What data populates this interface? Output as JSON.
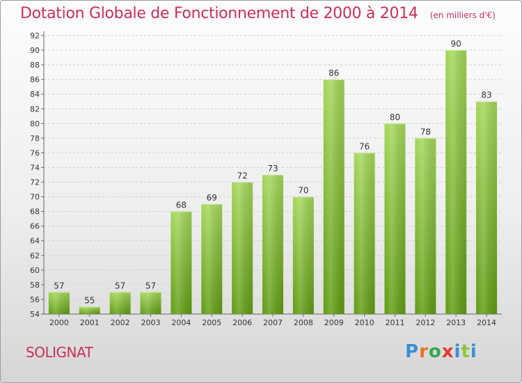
{
  "title": "Dotation Globale de Fonctionnement de 2000 à 2014",
  "subtitle": "(en milliers d'€)",
  "commune": "SOLIGNAT",
  "logo": {
    "text": "Proxiti",
    "letters": [
      {
        "ch": "P",
        "color": "#3a8fd6"
      },
      {
        "ch": "r",
        "color": "#e8731e"
      },
      {
        "ch": "o",
        "color": "#2fa84f"
      },
      {
        "ch": "x",
        "color": "#e23a2c"
      },
      {
        "ch": "i",
        "color": "#3a8fd6"
      },
      {
        "ch": "t",
        "color": "#8cc63e"
      },
      {
        "ch": "i",
        "color": "#3a8fd6"
      }
    ]
  },
  "colors": {
    "title": "#c8305a",
    "bar_top": "#a4d65a",
    "bar_bottom": "#5f9b12",
    "grid": "#cfcfcf"
  },
  "chart_data": {
    "type": "bar",
    "categories": [
      "2000",
      "2001",
      "2002",
      "2003",
      "2004",
      "2005",
      "2006",
      "2007",
      "2008",
      "2009",
      "2010",
      "2011",
      "2012",
      "2013",
      "2014"
    ],
    "values": [
      57,
      55,
      57,
      57,
      68,
      69,
      72,
      73,
      70,
      86,
      76,
      80,
      78,
      90,
      83
    ],
    "ylim": [
      54,
      92
    ],
    "yticks": [
      54,
      56,
      58,
      60,
      62,
      64,
      66,
      68,
      70,
      72,
      74,
      76,
      78,
      80,
      82,
      84,
      86,
      88,
      90,
      92
    ],
    "grid": true,
    "xlabel": "",
    "ylabel": ""
  }
}
